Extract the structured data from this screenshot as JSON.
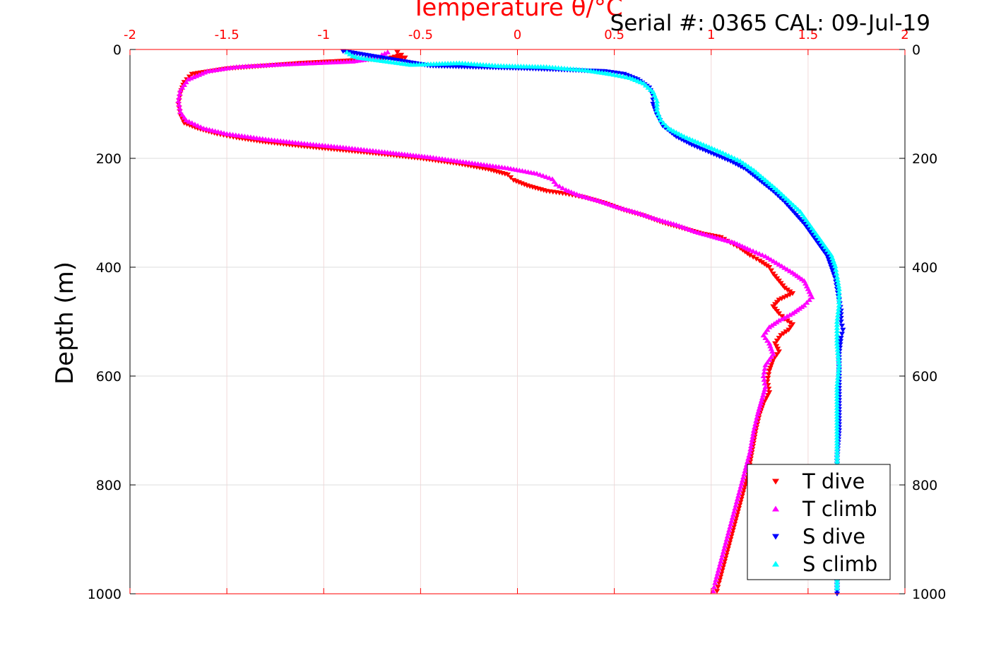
{
  "chart_data": {
    "type": "scatter",
    "title": "Temperature θ/°C",
    "title_color": "#ff0000",
    "annotation": "Serial #: 0365  CAL: 09-Jul-19",
    "ylabel": "Depth (m)",
    "x_top_ticks": [
      "-2",
      "-1.5",
      "-1",
      "-0.5",
      "0",
      "0.5",
      "1",
      "1.5",
      "2"
    ],
    "x_tick_values": [
      -2,
      -1.5,
      -1,
      -0.5,
      0,
      0.5,
      1,
      1.5,
      2
    ],
    "xlim": [
      -2,
      2
    ],
    "ylim": [
      0,
      1000
    ],
    "y_reversed": true,
    "y_ticks": [
      "0",
      "200",
      "400",
      "600",
      "800",
      "1000"
    ],
    "y_tick_values": [
      0,
      200,
      400,
      600,
      800,
      1000
    ],
    "grid": true,
    "legend_position": "bottom-right",
    "series": [
      {
        "name": "T dive",
        "color": "#ff0000",
        "marker": "triangle-down",
        "points": [
          [
            -0.62,
            5
          ],
          [
            -0.6,
            10
          ],
          [
            -0.65,
            15
          ],
          [
            -0.58,
            15
          ],
          [
            -1.12,
            25
          ],
          [
            -1.5,
            35
          ],
          [
            -1.68,
            45
          ],
          [
            -1.72,
            60
          ],
          [
            -1.74,
            80
          ],
          [
            -1.75,
            100
          ],
          [
            -1.74,
            120
          ],
          [
            -1.72,
            135
          ],
          [
            -1.65,
            145
          ],
          [
            -1.55,
            155
          ],
          [
            -1.45,
            162
          ],
          [
            -1.3,
            170
          ],
          [
            -1.1,
            178
          ],
          [
            -0.9,
            185
          ],
          [
            -0.7,
            192
          ],
          [
            -0.5,
            200
          ],
          [
            -0.3,
            210
          ],
          [
            -0.15,
            220
          ],
          [
            -0.05,
            230
          ],
          [
            -0.02,
            240
          ],
          [
            0.05,
            250
          ],
          [
            0.15,
            260
          ],
          [
            0.25,
            265
          ],
          [
            0.35,
            272
          ],
          [
            0.45,
            282
          ],
          [
            0.55,
            295
          ],
          [
            0.65,
            305
          ],
          [
            0.75,
            318
          ],
          [
            0.85,
            328
          ],
          [
            0.95,
            338
          ],
          [
            1.05,
            345
          ],
          [
            1.1,
            355
          ],
          [
            1.15,
            365
          ],
          [
            1.2,
            378
          ],
          [
            1.25,
            388
          ],
          [
            1.3,
            400
          ],
          [
            1.32,
            412
          ],
          [
            1.35,
            425
          ],
          [
            1.38,
            438
          ],
          [
            1.42,
            448
          ],
          [
            1.35,
            460
          ],
          [
            1.32,
            472
          ],
          [
            1.35,
            485
          ],
          [
            1.38,
            495
          ],
          [
            1.42,
            505
          ],
          [
            1.4,
            515
          ],
          [
            1.36,
            525
          ],
          [
            1.33,
            540
          ],
          [
            1.35,
            555
          ],
          [
            1.32,
            570
          ],
          [
            1.3,
            590
          ],
          [
            1.29,
            610
          ],
          [
            1.3,
            630
          ],
          [
            1.27,
            650
          ],
          [
            1.25,
            670
          ],
          [
            1.23,
            700
          ],
          [
            1.21,
            740
          ],
          [
            1.19,
            780
          ],
          [
            1.16,
            820
          ],
          [
            1.13,
            860
          ],
          [
            1.1,
            900
          ],
          [
            1.07,
            940
          ],
          [
            1.04,
            980
          ],
          [
            1.03,
            995
          ]
        ]
      },
      {
        "name": "T climb",
        "color": "#ff00ff",
        "marker": "triangle-up",
        "points": [
          [
            -0.67,
            5
          ],
          [
            -0.7,
            10
          ],
          [
            -0.72,
            15
          ],
          [
            -0.85,
            22
          ],
          [
            -1.05,
            25
          ],
          [
            -1.25,
            28
          ],
          [
            -1.45,
            32
          ],
          [
            -1.6,
            40
          ],
          [
            -1.7,
            55
          ],
          [
            -1.74,
            75
          ],
          [
            -1.75,
            95
          ],
          [
            -1.74,
            115
          ],
          [
            -1.71,
            130
          ],
          [
            -1.62,
            145
          ],
          [
            -1.5,
            155
          ],
          [
            -1.3,
            165
          ],
          [
            -1.1,
            173
          ],
          [
            -0.9,
            180
          ],
          [
            -0.7,
            188
          ],
          [
            -0.45,
            198
          ],
          [
            -0.25,
            208
          ],
          [
            -0.05,
            218
          ],
          [
            0.1,
            228
          ],
          [
            0.18,
            238
          ],
          [
            0.2,
            248
          ],
          [
            0.25,
            258
          ],
          [
            0.32,
            268
          ],
          [
            0.42,
            278
          ],
          [
            0.52,
            290
          ],
          [
            0.62,
            300
          ],
          [
            0.72,
            312
          ],
          [
            0.82,
            322
          ],
          [
            0.92,
            335
          ],
          [
            1.02,
            345
          ],
          [
            1.12,
            355
          ],
          [
            1.2,
            368
          ],
          [
            1.28,
            380
          ],
          [
            1.35,
            395
          ],
          [
            1.42,
            410
          ],
          [
            1.48,
            425
          ],
          [
            1.5,
            440
          ],
          [
            1.52,
            455
          ],
          [
            1.48,
            470
          ],
          [
            1.42,
            485
          ],
          [
            1.35,
            498
          ],
          [
            1.3,
            510
          ],
          [
            1.27,
            525
          ],
          [
            1.3,
            540
          ],
          [
            1.32,
            560
          ],
          [
            1.28,
            580
          ],
          [
            1.27,
            600
          ],
          [
            1.28,
            620
          ],
          [
            1.26,
            645
          ],
          [
            1.24,
            670
          ],
          [
            1.22,
            700
          ],
          [
            1.2,
            740
          ],
          [
            1.17,
            780
          ],
          [
            1.14,
            820
          ],
          [
            1.11,
            860
          ],
          [
            1.08,
            900
          ],
          [
            1.05,
            940
          ],
          [
            1.02,
            980
          ],
          [
            1.01,
            995
          ]
        ]
      },
      {
        "name": "S dive",
        "color": "#0000ff",
        "marker": "triangle-down",
        "points": [
          [
            -0.9,
            3
          ],
          [
            -0.45,
            30
          ],
          [
            0.05,
            35
          ],
          [
            0.45,
            40
          ],
          [
            0.55,
            45
          ],
          [
            0.62,
            55
          ],
          [
            0.68,
            70
          ],
          [
            0.7,
            85
          ],
          [
            0.7,
            100
          ],
          [
            0.72,
            120
          ],
          [
            0.75,
            140
          ],
          [
            0.82,
            160
          ],
          [
            0.9,
            175
          ],
          [
            1.0,
            190
          ],
          [
            1.1,
            205
          ],
          [
            1.18,
            220
          ],
          [
            1.25,
            240
          ],
          [
            1.32,
            260
          ],
          [
            1.38,
            280
          ],
          [
            1.43,
            300
          ],
          [
            1.48,
            320
          ],
          [
            1.52,
            340
          ],
          [
            1.56,
            360
          ],
          [
            1.6,
            380
          ],
          [
            1.62,
            400
          ],
          [
            1.64,
            420
          ],
          [
            1.65,
            440
          ],
          [
            1.66,
            460
          ],
          [
            1.67,
            480
          ],
          [
            1.67,
            500
          ],
          [
            1.68,
            515
          ],
          [
            1.67,
            530
          ],
          [
            1.66,
            560
          ],
          [
            1.66,
            600
          ],
          [
            1.66,
            650
          ],
          [
            1.66,
            700
          ],
          [
            1.65,
            750
          ],
          [
            1.65,
            800
          ],
          [
            1.65,
            850
          ],
          [
            1.65,
            900
          ],
          [
            1.65,
            950
          ],
          [
            1.65,
            1000
          ]
        ]
      },
      {
        "name": "S climb",
        "color": "#00ffff",
        "marker": "triangle-up",
        "points": [
          [
            -0.88,
            5
          ],
          [
            -0.85,
            12
          ],
          [
            -0.82,
            15
          ],
          [
            -0.55,
            28
          ],
          [
            -0.3,
            25
          ],
          [
            -0.1,
            30
          ],
          [
            0.15,
            32
          ],
          [
            0.35,
            38
          ],
          [
            0.48,
            45
          ],
          [
            0.58,
            52
          ],
          [
            0.65,
            62
          ],
          [
            0.7,
            78
          ],
          [
            0.72,
            95
          ],
          [
            0.72,
            112
          ],
          [
            0.74,
            130
          ],
          [
            0.78,
            145
          ],
          [
            0.86,
            160
          ],
          [
            0.96,
            175
          ],
          [
            1.06,
            190
          ],
          [
            1.15,
            205
          ],
          [
            1.22,
            222
          ],
          [
            1.28,
            240
          ],
          [
            1.34,
            258
          ],
          [
            1.4,
            278
          ],
          [
            1.46,
            298
          ],
          [
            1.5,
            318
          ],
          [
            1.54,
            338
          ],
          [
            1.58,
            358
          ],
          [
            1.62,
            378
          ],
          [
            1.64,
            398
          ],
          [
            1.65,
            418
          ],
          [
            1.66,
            440
          ],
          [
            1.66,
            470
          ],
          [
            1.65,
            500
          ],
          [
            1.65,
            540
          ],
          [
            1.66,
            580
          ],
          [
            1.65,
            620
          ],
          [
            1.65,
            680
          ],
          [
            1.65,
            740
          ],
          [
            1.65,
            800
          ],
          [
            1.65,
            860
          ],
          [
            1.65,
            920
          ],
          [
            1.65,
            990
          ]
        ]
      }
    ]
  }
}
